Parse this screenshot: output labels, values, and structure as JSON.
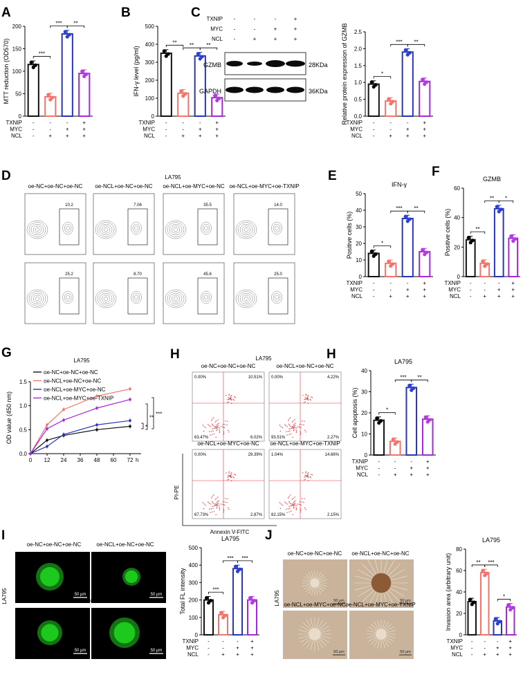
{
  "colors": {
    "black": "#111111",
    "salmon": "#f4736a",
    "blue": "#2734b6",
    "purple": "#a626d9",
    "dot_black": "#000000",
    "dot_salmon": "#f4736a",
    "dot_blue": "#2c3fd9",
    "dot_purple": "#b43ae6",
    "scatter_red": "#e8303a",
    "fluor_green": "#1fd31f",
    "invasion_bg": "#c9b39a"
  },
  "cond": {
    "rows": [
      "TXNIP",
      "MYC",
      "NCL"
    ],
    "txnip": [
      "-",
      "-",
      "-",
      "+"
    ],
    "myc": [
      "-",
      "-",
      "+",
      "+"
    ],
    "ncl": [
      "-",
      "+",
      "+",
      "+"
    ]
  },
  "groups": [
    "oe-NC+oe-NC+oe-NC",
    "oe-NCL+oe-NC+oe-NC",
    "oe-NCL+oe-MYC+oe-NC",
    "oe-NCL+oe-MYC+oe-TXNIP"
  ],
  "cell_line": "LA795",
  "panels": {
    "A": {
      "letter": "A",
      "ylabel": "MTT reduction (OD570)",
      "yticks": [
        "0",
        "50",
        "100",
        "150",
        "200"
      ],
      "ymax": 200,
      "values": [
        115,
        43,
        183,
        95
      ],
      "sig": [
        "***",
        "***",
        "**"
      ]
    },
    "B": {
      "letter": "B",
      "ylabel": "IFN-γ level (pg/ml)",
      "yticks": [
        "0",
        "100",
        "200",
        "300",
        "400",
        "500"
      ],
      "ymax": 500,
      "values": [
        350,
        128,
        335,
        103
      ],
      "sig": [
        "**",
        "**",
        "**"
      ]
    },
    "C": {
      "letter": "C",
      "ylabel": "Relative protein expression of GZMB",
      "yticks": [
        "0.0",
        "0.5",
        "1.0",
        "1.5",
        "2.0",
        "2.5"
      ],
      "ymax": 2.5,
      "values": [
        0.95,
        0.45,
        1.9,
        1.03
      ],
      "sig": [
        "*",
        "***",
        "**"
      ],
      "blot_labels": [
        "GZMB",
        "GAPDH"
      ],
      "blot_sizes": [
        "28KDa",
        "36KDa"
      ]
    },
    "D": {
      "letter": "D",
      "title": "LA795",
      "gates_row1": [
        "10.2",
        "7.06",
        "35.5",
        "14.0"
      ],
      "gates_row2": [
        "25.2",
        "8.70",
        "45.6",
        "25.0"
      ]
    },
    "E": {
      "letter": "E",
      "title": "IFN-γ",
      "ylabel": "Positive cells (%)",
      "yticks": [
        "0",
        "10",
        "20",
        "30",
        "40",
        "50"
      ],
      "ymax": 50,
      "values": [
        14,
        8,
        35,
        15
      ],
      "sig": [
        "*",
        "***",
        "**"
      ]
    },
    "F": {
      "letter": "F",
      "title": "GZMB",
      "ylabel": "Positive cells (%)",
      "yticks": [
        "0",
        "20",
        "40",
        "60"
      ],
      "ymax": 60,
      "values": [
        25,
        9,
        46,
        26
      ],
      "sig": [
        "**",
        "**",
        "*"
      ]
    },
    "G": {
      "letter": "G",
      "title": "LA795",
      "ylabel": "OD value (450 nm)",
      "xunit": "h",
      "xticks": [
        "0",
        "12",
        "24",
        "36",
        "48",
        "60",
        "72"
      ],
      "yticks": [
        "0.0",
        "0.5",
        "1.0",
        "1.5"
      ],
      "x": [
        0,
        12,
        24,
        48,
        72
      ],
      "ymax": 1.5,
      "series": [
        {
          "name": "oe-NC+oe-NC+oe-NC",
          "values": [
            0,
            0.28,
            0.38,
            0.5,
            0.57
          ],
          "color": "#111111"
        },
        {
          "name": "oe-NCL+oe-NC+oe-NC",
          "values": [
            0,
            0.6,
            0.92,
            1.2,
            1.35
          ],
          "color": "#f4736a"
        },
        {
          "name": "oe-NCL+oe-MYC+oe-NC",
          "values": [
            0,
            0.15,
            0.4,
            0.6,
            0.69
          ],
          "color": "#2734b6"
        },
        {
          "name": "oe-NCL+oe-MYC+oe-TXNIP",
          "values": [
            0,
            0.52,
            0.7,
            0.95,
            1.13
          ],
          "color": "#a626d9"
        }
      ],
      "sig": [
        "*",
        "**",
        "***"
      ]
    },
    "H": {
      "letter": "H",
      "title": "LA795",
      "bar_title": "LA795",
      "xlabel": "Annexin V-FITC",
      "ylabel_flow": "PI-PE",
      "ylabel": "Cell apoptosis (%)",
      "yticks": [
        "0",
        "10",
        "20",
        "30",
        "40"
      ],
      "ymax": 40,
      "values": [
        16.5,
        6.5,
        32,
        17
      ],
      "sig": [
        "*",
        "***",
        "**"
      ],
      "quadrants": [
        [
          "0.00%",
          "10.51%",
          "63.47%",
          "6.02%"
        ],
        [
          "0.00%",
          "4.22%",
          "93.51%",
          "2.27%"
        ],
        [
          "0.00%",
          "29.39%",
          "67.73%",
          "2.87%"
        ],
        [
          "1.04%",
          "14.66%",
          "82.15%",
          "2.15%"
        ]
      ]
    },
    "I": {
      "letter": "I",
      "title": "LA795",
      "side_label": "LA795",
      "ylabel": "Total FL intensity",
      "yticks": [
        "0",
        "100",
        "200",
        "300",
        "400",
        "500"
      ],
      "ymax": 500,
      "values": [
        200,
        115,
        380,
        200
      ],
      "sig": [
        "***",
        "***",
        "***"
      ],
      "scale": "50 μm"
    },
    "J": {
      "letter": "J",
      "title": "LA795",
      "side_label": "LA795",
      "ylabel": "Invasion area (arbitrary unit)",
      "yticks": [
        "0",
        "20",
        "40",
        "60",
        "80"
      ],
      "ymax": 80,
      "values": [
        31,
        58,
        13,
        26
      ],
      "sig": [
        "**",
        "***",
        "*"
      ],
      "scale": "50 μm"
    }
  }
}
